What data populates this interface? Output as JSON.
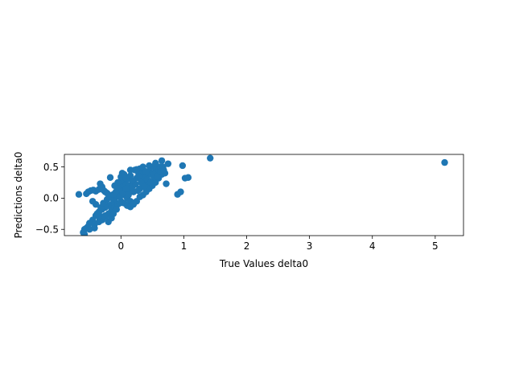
{
  "chart_data": {
    "type": "scatter",
    "xlabel": "True Values delta0",
    "ylabel": "Predictions delta0",
    "xlim": [
      -0.9,
      5.45
    ],
    "ylim": [
      -0.6,
      0.7
    ],
    "xticks": [
      0,
      1,
      2,
      3,
      4,
      5
    ],
    "yticks": [
      -0.5,
      0.0,
      0.5
    ],
    "ytick_labels": [
      "−0.5",
      "0.0",
      "0.5"
    ],
    "grid": false,
    "color": "#1f77b4",
    "series": [
      {
        "points": [
          [
            -0.67,
            0.06
          ],
          [
            -0.55,
            0.07
          ],
          [
            -0.52,
            0.1
          ],
          [
            -0.48,
            0.12
          ],
          [
            -0.44,
            0.13
          ],
          [
            -0.4,
            0.11
          ],
          [
            -0.35,
            0.14
          ],
          [
            -0.33,
            0.23
          ],
          [
            -0.3,
            0.18
          ],
          [
            -0.27,
            0.12
          ],
          [
            -0.25,
            0.1
          ],
          [
            -0.22,
            0.08
          ],
          [
            -0.19,
            0.05
          ],
          [
            -0.15,
            0.02
          ],
          [
            -0.12,
            -0.02
          ],
          [
            -0.1,
            0.01
          ],
          [
            -0.08,
            0.04
          ],
          [
            -0.05,
            0.08
          ],
          [
            -0.03,
            0.12
          ],
          [
            -0.01,
            0.18
          ],
          [
            0.0,
            0.34
          ],
          [
            0.02,
            0.4
          ],
          [
            -0.17,
            0.33
          ],
          [
            0.05,
            0.26
          ],
          [
            0.08,
            0.22
          ],
          [
            0.1,
            0.3
          ],
          [
            0.13,
            0.2
          ],
          [
            0.15,
            0.36
          ],
          [
            0.17,
            0.12
          ],
          [
            0.2,
            0.25
          ],
          [
            0.22,
            0.45
          ],
          [
            0.25,
            0.32
          ],
          [
            0.28,
            0.4
          ],
          [
            0.3,
            0.47
          ],
          [
            0.33,
            0.38
          ],
          [
            0.35,
            0.28
          ],
          [
            0.38,
            0.43
          ],
          [
            0.4,
            0.35
          ],
          [
            0.42,
            0.22
          ],
          [
            0.45,
            0.44
          ],
          [
            0.48,
            0.38
          ],
          [
            0.5,
            0.5
          ],
          [
            0.52,
            0.3
          ],
          [
            0.55,
            0.42
          ],
          [
            0.57,
            0.47
          ],
          [
            0.6,
            0.45
          ],
          [
            0.62,
            0.5
          ],
          [
            0.65,
            0.6
          ],
          [
            0.67,
            0.5
          ],
          [
            0.7,
            0.4
          ],
          [
            0.72,
            0.23
          ],
          [
            0.75,
            0.55
          ],
          [
            0.55,
            0.56
          ],
          [
            0.45,
            0.52
          ],
          [
            0.35,
            0.5
          ],
          [
            0.25,
            0.46
          ],
          [
            0.15,
            0.45
          ],
          [
            0.05,
            0.38
          ],
          [
            0.0,
            0.28
          ],
          [
            -0.05,
            0.25
          ],
          [
            -0.1,
            0.2
          ],
          [
            -0.05,
            0.15
          ],
          [
            0.0,
            0.1
          ],
          [
            0.05,
            0.05
          ],
          [
            0.1,
            0.0
          ],
          [
            0.15,
            -0.05
          ],
          [
            0.2,
            -0.08
          ],
          [
            0.25,
            -0.05
          ],
          [
            0.3,
            0.02
          ],
          [
            0.35,
            0.05
          ],
          [
            0.4,
            0.1
          ],
          [
            0.45,
            0.15
          ],
          [
            0.5,
            0.2
          ],
          [
            0.55,
            0.25
          ],
          [
            0.6,
            0.32
          ],
          [
            0.65,
            0.38
          ],
          [
            0.3,
            0.15
          ],
          [
            0.2,
            0.1
          ],
          [
            0.1,
            0.12
          ],
          [
            0.0,
            0.05
          ],
          [
            -0.1,
            -0.05
          ],
          [
            -0.15,
            -0.1
          ],
          [
            -0.2,
            -0.12
          ],
          [
            -0.25,
            -0.15
          ],
          [
            -0.3,
            -0.18
          ],
          [
            -0.35,
            -0.22
          ],
          [
            -0.4,
            -0.1
          ],
          [
            -0.45,
            -0.05
          ],
          [
            -0.4,
            -0.28
          ],
          [
            -0.45,
            -0.35
          ],
          [
            -0.5,
            -0.4
          ],
          [
            -0.52,
            -0.45
          ],
          [
            -0.55,
            -0.48
          ],
          [
            -0.58,
            -0.5
          ],
          [
            -0.6,
            -0.55
          ],
          [
            -0.58,
            -0.58
          ],
          [
            -0.5,
            -0.5
          ],
          [
            -0.42,
            -0.42
          ],
          [
            -0.35,
            -0.38
          ],
          [
            -0.3,
            -0.3
          ],
          [
            -0.25,
            -0.28
          ],
          [
            -0.2,
            -0.25
          ],
          [
            -0.15,
            -0.2
          ],
          [
            -0.1,
            -0.15
          ],
          [
            -0.05,
            -0.1
          ],
          [
            0.0,
            -0.05
          ],
          [
            0.05,
            -0.08
          ],
          [
            0.1,
            -0.12
          ],
          [
            0.15,
            -0.14
          ],
          [
            0.2,
            -0.1
          ],
          [
            -0.2,
            -0.38
          ],
          [
            -0.15,
            -0.32
          ],
          [
            -0.3,
            -0.35
          ],
          [
            -0.35,
            -0.3
          ],
          [
            -0.38,
            -0.25
          ],
          [
            -0.32,
            -0.15
          ],
          [
            -0.28,
            -0.08
          ],
          [
            -0.22,
            -0.02
          ],
          [
            -0.18,
            0.02
          ],
          [
            -0.12,
            0.06
          ],
          [
            -0.08,
            0.1
          ],
          [
            -0.02,
            0.02
          ],
          [
            0.03,
            0.08
          ],
          [
            0.08,
            0.15
          ],
          [
            0.12,
            0.05
          ],
          [
            0.18,
            0.18
          ],
          [
            0.23,
            0.22
          ],
          [
            0.27,
            0.12
          ],
          [
            0.32,
            0.25
          ],
          [
            0.37,
            0.18
          ],
          [
            0.42,
            0.3
          ],
          [
            0.47,
            0.25
          ],
          [
            0.52,
            0.38
          ],
          [
            0.58,
            0.35
          ],
          [
            0.63,
            0.42
          ],
          [
            0.68,
            0.45
          ],
          [
            0.4,
            0.42
          ],
          [
            0.28,
            0.35
          ],
          [
            0.18,
            0.28
          ],
          [
            0.08,
            0.32
          ],
          [
            -0.02,
            -0.08
          ],
          [
            -0.07,
            -0.18
          ],
          [
            -0.12,
            -0.25
          ],
          [
            -0.25,
            -0.3
          ],
          [
            -0.42,
            -0.48
          ],
          [
            0.9,
            0.06
          ],
          [
            0.95,
            0.1
          ],
          [
            0.98,
            0.52
          ],
          [
            1.02,
            0.32
          ],
          [
            1.07,
            0.33
          ],
          [
            1.42,
            0.64
          ],
          [
            5.15,
            0.57
          ]
        ]
      }
    ]
  }
}
